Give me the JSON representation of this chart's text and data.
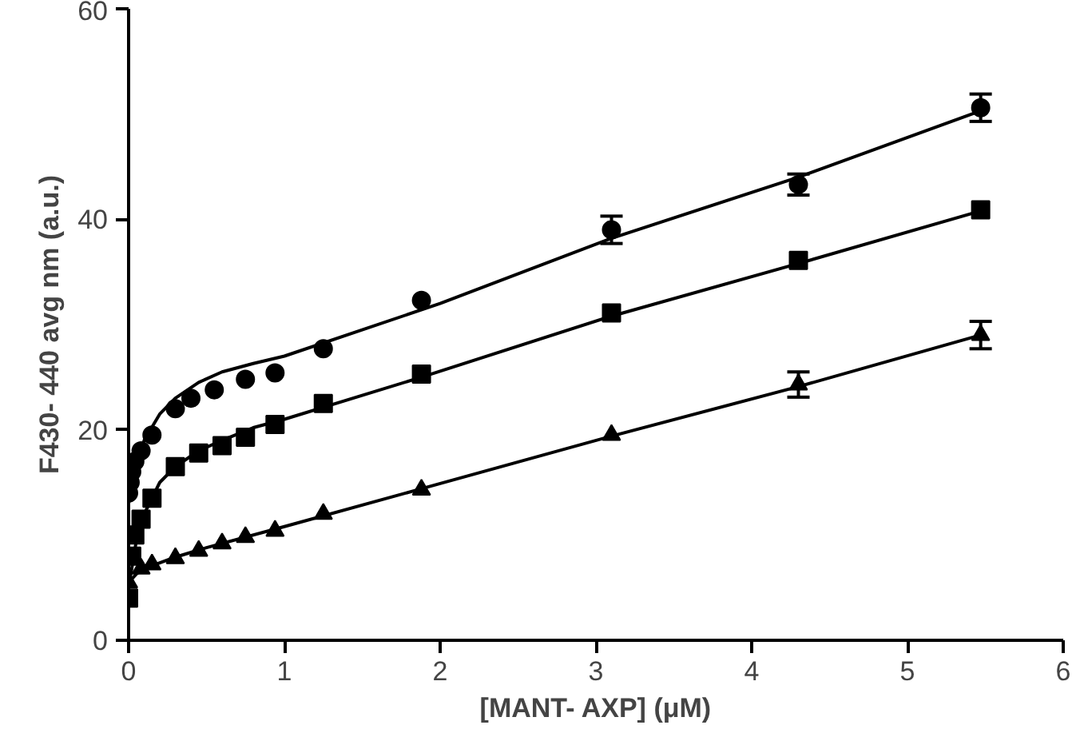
{
  "chart_data": {
    "type": "scatter",
    "xlabel": "[MANT- AXP] (μM)",
    "ylabel": "F430- 440 avg nm (a.u.)",
    "xlim": [
      0,
      6
    ],
    "ylim": [
      0,
      60
    ],
    "xticks": [
      0,
      1,
      2,
      3,
      4,
      5,
      6
    ],
    "yticks": [
      0,
      20,
      40,
      60
    ],
    "grid": false,
    "series": [
      {
        "marker": "circle",
        "color": "#000000",
        "x": [
          0,
          0.01,
          0.02,
          0.04,
          0.08,
          0.15,
          0.3,
          0.4,
          0.55,
          0.75,
          0.94,
          1.25,
          1.88,
          3.1,
          4.3,
          5.47
        ],
        "values": [
          14,
          15,
          16,
          17,
          18,
          19.5,
          22,
          23,
          23.8,
          24.8,
          25.4,
          27.7,
          32.3,
          39,
          43.3,
          50.6
        ],
        "errors": [
          null,
          null,
          null,
          null,
          null,
          null,
          null,
          null,
          null,
          null,
          null,
          null,
          null,
          1.3,
          1,
          1.3
        ]
      },
      {
        "marker": "square",
        "color": "#000000",
        "x": [
          0,
          0.01,
          0.02,
          0.04,
          0.08,
          0.15,
          0.3,
          0.45,
          0.6,
          0.75,
          0.94,
          1.25,
          1.88,
          3.1,
          4.3,
          5.47
        ],
        "values": [
          4,
          null,
          8,
          10,
          11.5,
          13.5,
          16.5,
          17.8,
          18.5,
          19.3,
          20.5,
          22.5,
          25.3,
          31.1,
          36.1,
          40.9
        ]
      },
      {
        "marker": "triangle",
        "color": "#000000",
        "x": [
          0,
          0.04,
          0.08,
          0.15,
          0.3,
          0.45,
          0.6,
          0.75,
          0.94,
          1.25,
          1.88,
          3.1,
          4.3,
          5.47
        ],
        "values": [
          5.5,
          null,
          6.8,
          7.2,
          7.8,
          8.5,
          9.2,
          9.8,
          10.4,
          12,
          14.3,
          19.5,
          24.3,
          29
        ],
        "errors": [
          null,
          null,
          null,
          null,
          null,
          null,
          null,
          null,
          null,
          null,
          null,
          null,
          1.2,
          1.3
        ]
      },
      {
        "type": "line",
        "color": "#000000",
        "x": [
          0,
          0.05,
          0.1,
          0.2,
          0.3,
          0.45,
          0.6,
          0.8,
          1,
          2,
          3.1,
          4.3,
          5.47
        ],
        "values": [
          13,
          16.5,
          19,
          21.5,
          23,
          24.5,
          25.5,
          26.3,
          27,
          32,
          38.2,
          44,
          50.3
        ]
      },
      {
        "type": "line",
        "color": "#000000",
        "x": [
          0,
          0.05,
          0.1,
          0.2,
          0.3,
          0.45,
          0.6,
          0.8,
          1,
          1.88,
          3.1,
          4.3,
          5.47
        ],
        "values": [
          5,
          9.5,
          12,
          15,
          16.5,
          18,
          19,
          20.2,
          21,
          25,
          30.8,
          35.8,
          40.8
        ]
      },
      {
        "type": "line",
        "color": "#000000",
        "x": [
          0,
          0.05,
          0.1,
          0.3,
          0.5,
          1,
          1.88,
          3.1,
          4.3,
          5.47
        ],
        "values": [
          5.5,
          6.3,
          6.8,
          7.9,
          8.8,
          10.8,
          14.4,
          19.4,
          24.1,
          29
        ]
      }
    ]
  }
}
